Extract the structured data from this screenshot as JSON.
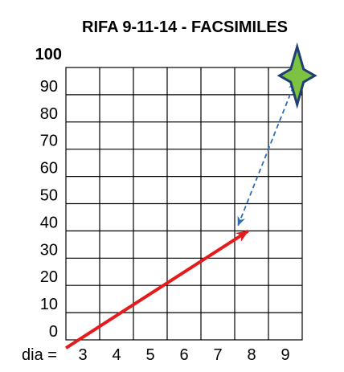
{
  "chart_data": {
    "type": "line",
    "title": "RIFA 9-11-14 - FACSIMILES",
    "xlabel": "dia =",
    "ylabel": "",
    "x_tick_labels": [
      "3",
      "4",
      "5",
      "6",
      "7",
      "8",
      "9"
    ],
    "y_tick_labels": [
      "0",
      "10",
      "20",
      "30",
      "40",
      "50",
      "60",
      "70",
      "80",
      "90",
      "100"
    ],
    "xlim": [
      2.5,
      9.5
    ],
    "ylim": [
      0,
      100
    ],
    "grid": true,
    "series": [
      {
        "style": "solid-arrow",
        "color": "#e41a1c",
        "points": [
          {
            "x": 2.5,
            "y": -3
          },
          {
            "x": 7.9,
            "y": 40
          }
        ]
      },
      {
        "style": "dashed-double-arrow",
        "color": "#2e6db4",
        "points": [
          {
            "x": 7.6,
            "y": 42
          },
          {
            "x": 9.3,
            "y": 95
          }
        ]
      }
    ],
    "annotations": [
      {
        "type": "star-marker",
        "x": 9.35,
        "y": 97,
        "fill": "#7dc242",
        "stroke": "#1f3f73"
      }
    ]
  }
}
